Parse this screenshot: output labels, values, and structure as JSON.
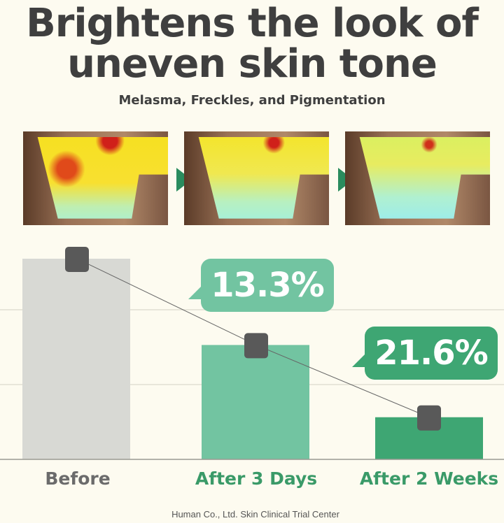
{
  "title_line1": "Brightens the look of",
  "title_line2": "uneven skin tone",
  "subtitle": "Melasma, Freckles, and Pigmentation",
  "photos": [
    {
      "stage": "Before",
      "pigment_level": "high"
    },
    {
      "stage": "After 3 Days",
      "pigment_level": "medium"
    },
    {
      "stage": "After 2 Weeks",
      "pigment_level": "low"
    }
  ],
  "chart_data": {
    "type": "bar",
    "categories": [
      "Before",
      "After 3 Days",
      "After 2 Weeks"
    ],
    "values": [
      100,
      57,
      21
    ],
    "ylim": [
      0,
      110
    ],
    "grid": true,
    "colors": [
      "#d8d9d4",
      "#72c4a1",
      "#3ea673"
    ],
    "label_colors": [
      "#6b6b6b",
      "#3a9a68",
      "#3a9a68"
    ],
    "line_marker_color": "#595959",
    "annotations": [
      {
        "category": "After 3 Days",
        "text": "13.3%",
        "color": "#72c4a1"
      },
      {
        "category": "After 2 Weeks",
        "text": "21.6%",
        "color": "#3ea673"
      }
    ]
  },
  "footer": "Human Co., Ltd. Skin Clinical Trial Center"
}
